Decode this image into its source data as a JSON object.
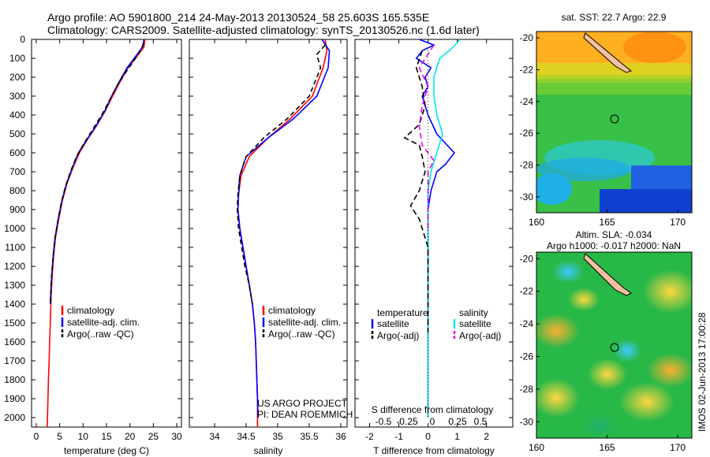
{
  "title_line1": "Argo profile: AO 5901800_214 24-May-2013 20130524_58 25.603S 165.535E",
  "title_line2": "Climatology: CARS2009. Satellite-adjusted climatology: synTS_20130526.nc (1.6d later)",
  "footer_stamp": "IMOS 02-Jun-2013 17:00:28",
  "colors": {
    "climatology": "#ff0000",
    "satellite": "#0000ff",
    "argo": "#000000",
    "sal_satellite": "#00e5ee",
    "sal_argo": "#ee00ee"
  },
  "chart_data": [
    {
      "type": "line",
      "name": "temperature-panel",
      "xlabel": "temperature (deg C)",
      "ylabel": "",
      "xlim": [
        -1,
        31
      ],
      "ylim": [
        2050,
        0
      ],
      "xticks": [
        0,
        5,
        10,
        15,
        20,
        25,
        30
      ],
      "yticks": [
        0,
        100,
        200,
        300,
        400,
        500,
        600,
        700,
        800,
        900,
        1000,
        1100,
        1200,
        1300,
        1400,
        1500,
        1600,
        1700,
        1800,
        1900,
        2000
      ],
      "legend": [
        "climatology",
        "satellite-adj. clim.",
        "Argo(..raw -QC)"
      ],
      "series": [
        {
          "name": "climatology",
          "color": "#ff0000",
          "dash": "",
          "points": [
            [
              23.2,
              0
            ],
            [
              23.0,
              40
            ],
            [
              21.5,
              90
            ],
            [
              19.6,
              150
            ],
            [
              18.0,
              220
            ],
            [
              16.3,
              300
            ],
            [
              14.7,
              380
            ],
            [
              12.8,
              460
            ],
            [
              10.9,
              530
            ],
            [
              9.2,
              600
            ],
            [
              7.8,
              680
            ],
            [
              6.6,
              760
            ],
            [
              5.6,
              850
            ],
            [
              4.8,
              950
            ],
            [
              4.1,
              1050
            ],
            [
              3.7,
              1150
            ],
            [
              3.4,
              1250
            ],
            [
              3.2,
              1350
            ],
            [
              3.0,
              1500
            ],
            [
              2.85,
              1600
            ],
            [
              2.75,
              1700
            ],
            [
              2.6,
              1800
            ],
            [
              2.5,
              1900
            ],
            [
              2.4,
              2000
            ],
            [
              2.35,
              2050
            ]
          ]
        },
        {
          "name": "satellite-adj. clim.",
          "color": "#0000ff",
          "dash": "",
          "points": [
            [
              23.0,
              0
            ],
            [
              22.7,
              40
            ],
            [
              21.2,
              90
            ],
            [
              19.4,
              150
            ],
            [
              17.8,
              220
            ],
            [
              16.1,
              300
            ],
            [
              14.6,
              380
            ],
            [
              12.7,
              460
            ],
            [
              10.8,
              530
            ],
            [
              9.0,
              600
            ],
            [
              7.7,
              680
            ],
            [
              6.5,
              760
            ],
            [
              5.5,
              850
            ],
            [
              4.7,
              950
            ],
            [
              4.0,
              1050
            ],
            [
              3.6,
              1150
            ],
            [
              3.3,
              1250
            ],
            [
              3.1,
              1350
            ],
            [
              3.0,
              1400
            ]
          ]
        },
        {
          "name": "Argo(..raw -QC)",
          "color": "#000000",
          "dash": "6,4",
          "points": [
            [
              22.9,
              20
            ],
            [
              22.5,
              50
            ],
            [
              21.2,
              100
            ],
            [
              19.5,
              160
            ],
            [
              17.6,
              230
            ],
            [
              15.9,
              310
            ],
            [
              14.2,
              390
            ],
            [
              12.2,
              470
            ],
            [
              10.2,
              550
            ],
            [
              8.6,
              620
            ],
            [
              7.3,
              700
            ],
            [
              6.2,
              780
            ],
            [
              5.3,
              870
            ],
            [
              4.6,
              960
            ],
            [
              4.0,
              1050
            ],
            [
              3.6,
              1150
            ],
            [
              3.3,
              1250
            ],
            [
              3.1,
              1350
            ],
            [
              3.0,
              1400
            ]
          ]
        }
      ]
    },
    {
      "type": "line",
      "name": "salinity-panel",
      "xlabel": "salinity",
      "ylabel": "",
      "xlim": [
        33.6,
        36.1
      ],
      "ylim": [
        2050,
        0
      ],
      "xticks": [
        34,
        34.5,
        35,
        35.5,
        36
      ],
      "legend": [
        "climatology",
        "satellite-adj. clim.",
        "Argo(..raw -QC)"
      ],
      "annotation": [
        "US ARGO PROJECT",
        "PI: DEAN ROEMMICH"
      ],
      "series": [
        {
          "name": "climatology",
          "color": "#ff0000",
          "dash": "",
          "points": [
            [
              35.75,
              0
            ],
            [
              35.78,
              60
            ],
            [
              35.72,
              150
            ],
            [
              35.55,
              300
            ],
            [
              35.2,
              420
            ],
            [
              34.85,
              520
            ],
            [
              34.55,
              620
            ],
            [
              34.42,
              720
            ],
            [
              34.38,
              820
            ],
            [
              34.37,
              900
            ],
            [
              34.4,
              1000
            ],
            [
              34.45,
              1100
            ],
            [
              34.5,
              1200
            ],
            [
              34.55,
              1300
            ],
            [
              34.6,
              1400
            ],
            [
              34.63,
              1500
            ],
            [
              34.65,
              1600
            ],
            [
              34.66,
              1700
            ],
            [
              34.67,
              1800
            ],
            [
              34.68,
              1900
            ],
            [
              34.68,
              2050
            ]
          ]
        },
        {
          "name": "satellite-adj. clim.",
          "color": "#0000ff",
          "dash": "",
          "points": [
            [
              35.7,
              0
            ],
            [
              35.82,
              60
            ],
            [
              35.8,
              150
            ],
            [
              35.62,
              300
            ],
            [
              35.25,
              420
            ],
            [
              34.85,
              520
            ],
            [
              34.5,
              620
            ],
            [
              34.4,
              720
            ],
            [
              34.38,
              820
            ],
            [
              34.37,
              900
            ],
            [
              34.4,
              1000
            ],
            [
              34.45,
              1100
            ],
            [
              34.5,
              1200
            ],
            [
              34.55,
              1300
            ],
            [
              34.6,
              1400
            ],
            [
              34.63,
              1500
            ],
            [
              34.65,
              1600
            ],
            [
              34.66,
              1700
            ],
            [
              34.67,
              1800
            ],
            [
              34.68,
              1900
            ],
            [
              34.69,
              2000
            ]
          ]
        },
        {
          "name": "Argo(..raw -QC)",
          "color": "#000000",
          "dash": "6,4",
          "points": [
            [
              35.75,
              30
            ],
            [
              35.62,
              80
            ],
            [
              35.68,
              150
            ],
            [
              35.5,
              300
            ],
            [
              35.15,
              420
            ],
            [
              34.78,
              520
            ],
            [
              34.5,
              620
            ],
            [
              34.4,
              720
            ],
            [
              34.37,
              820
            ],
            [
              34.36,
              900
            ],
            [
              34.38,
              1000
            ],
            [
              34.43,
              1100
            ],
            [
              34.48,
              1200
            ],
            [
              34.55,
              1300
            ],
            [
              34.6,
              1400
            ]
          ]
        }
      ]
    },
    {
      "type": "line",
      "name": "difference-panel",
      "xlabel": "T difference from climatology",
      "xlabel_top": "S difference from climatology",
      "xlim": [
        -2.5,
        2.9
      ],
      "ylim": [
        2050,
        0
      ],
      "xticks": [
        -2,
        -1,
        0,
        1,
        2
      ],
      "xticks_s": [
        "-0.5",
        "-0.25",
        "0",
        "0.25",
        "0.5"
      ],
      "legend_headers": [
        "temperature",
        "salinity"
      ],
      "legend": [
        "satellite",
        "Argo(-adj)",
        "satellite",
        "Argo(-adj)"
      ],
      "series": [
        {
          "name": "temperature satellite",
          "color": "#0000ff",
          "dash": "",
          "points": [
            [
              -0.3,
              0
            ],
            [
              0.2,
              30
            ],
            [
              -0.2,
              60
            ],
            [
              -0.4,
              100
            ],
            [
              0.1,
              150
            ],
            [
              -0.1,
              200
            ],
            [
              0,
              250
            ],
            [
              -0.2,
              300
            ],
            [
              0,
              400
            ],
            [
              0.3,
              500
            ],
            [
              0.9,
              600
            ],
            [
              0.6,
              660
            ],
            [
              0.3,
              700
            ],
            [
              0.1,
              800
            ],
            [
              0,
              900
            ],
            [
              0,
              1100
            ],
            [
              0,
              1500
            ],
            [
              0,
              2000
            ]
          ]
        },
        {
          "name": "salinity satellite",
          "color": "#00e5ee",
          "dash": "",
          "points": [
            [
              1.1,
              0
            ],
            [
              0.8,
              50
            ],
            [
              0.4,
              100
            ],
            [
              0.2,
              200
            ],
            [
              0.2,
              300
            ],
            [
              0.3,
              400
            ],
            [
              0.5,
              500
            ],
            [
              0.3,
              600
            ],
            [
              0.1,
              700
            ],
            [
              0,
              800
            ],
            [
              0,
              1000
            ],
            [
              0,
              1500
            ],
            [
              0,
              2000
            ]
          ]
        },
        {
          "name": "temperature Argo(-adj)",
          "color": "#000000",
          "dash": "7,4",
          "points": [
            [
              -0.2,
              60
            ],
            [
              -0.4,
              150
            ],
            [
              -0.2,
              250
            ],
            [
              -0.1,
              350
            ],
            [
              -0.3,
              450
            ],
            [
              -0.8,
              520
            ],
            [
              -0.3,
              560
            ],
            [
              -0.2,
              620
            ],
            [
              -0.1,
              700
            ],
            [
              -0.3,
              800
            ],
            [
              -0.6,
              880
            ],
            [
              -0.3,
              950
            ],
            [
              0,
              1100
            ],
            [
              0,
              1400
            ],
            [
              0,
              1550
            ]
          ]
        },
        {
          "name": "salinity Argo(-adj)",
          "color": "#ee00ee",
          "dash": "7,4",
          "points": [
            [
              0.2,
              30
            ],
            [
              -0.3,
              150
            ],
            [
              0,
              250
            ],
            [
              -0.2,
              350
            ],
            [
              -0.3,
              460
            ],
            [
              -0.2,
              560
            ],
            [
              0.2,
              640
            ],
            [
              0,
              700
            ],
            [
              0,
              800
            ],
            [
              0,
              900
            ],
            [
              0,
              1000
            ]
          ]
        }
      ]
    },
    {
      "type": "heatmap",
      "name": "sst-map",
      "title": "sat. SST: 22.7  Argo: 22.9",
      "xlim": [
        160,
        171
      ],
      "ylim": [
        -31,
        -19.6
      ],
      "xticks": [
        160,
        165,
        170
      ],
      "yticks": [
        -20,
        -22,
        -24,
        -26,
        -28,
        -30
      ],
      "marker": [
        165.535,
        -25.603
      ]
    },
    {
      "type": "heatmap",
      "name": "sla-map",
      "title": "Altim. SLA: -0.034",
      "subtitle": "Argo h1000: -0.017 h2000: NaN",
      "xlim": [
        160,
        171
      ],
      "ylim": [
        -31,
        -19.6
      ],
      "xticks": [
        160,
        165,
        170
      ],
      "yticks": [
        -20,
        -22,
        -24,
        -26,
        -28,
        -30
      ],
      "marker": [
        165.535,
        -25.603
      ]
    }
  ]
}
